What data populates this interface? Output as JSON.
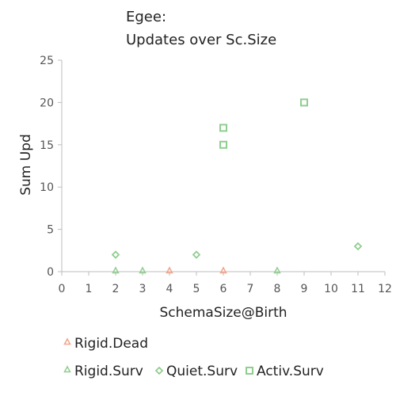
{
  "chart_data": {
    "type": "scatter",
    "title_lines": [
      "Egee:",
      "Updates over Sc.Size"
    ],
    "xlabel": "SchemaSize@Birth",
    "ylabel": "Sum Upd",
    "xlim": [
      0,
      12
    ],
    "ylim": [
      0,
      25
    ],
    "x_ticks": [
      0,
      1,
      2,
      3,
      4,
      5,
      6,
      7,
      8,
      9,
      10,
      11,
      12
    ],
    "y_ticks": [
      0,
      5,
      10,
      15,
      20,
      25
    ],
    "grid": false,
    "legend_position": "bottom",
    "series": [
      {
        "name": "Rigid.Dead",
        "marker": "triangle",
        "color": "#f4a48a",
        "points": [
          {
            "x": 4,
            "y": 0
          },
          {
            "x": 6,
            "y": 0
          }
        ]
      },
      {
        "name": "Rigid.Surv",
        "marker": "triangle",
        "color": "#8fce8f",
        "points": [
          {
            "x": 2,
            "y": 0
          },
          {
            "x": 3,
            "y": 0
          },
          {
            "x": 8,
            "y": 0
          }
        ]
      },
      {
        "name": "Quiet.Surv",
        "marker": "diamond",
        "color": "#8fce8f",
        "points": [
          {
            "x": 2,
            "y": 2
          },
          {
            "x": 5,
            "y": 2
          },
          {
            "x": 11,
            "y": 3
          }
        ]
      },
      {
        "name": "Activ.Surv",
        "marker": "square",
        "color": "#8fce8f",
        "points": [
          {
            "x": 6,
            "y": 15
          },
          {
            "x": 6,
            "y": 17
          },
          {
            "x": 9,
            "y": 20
          }
        ]
      }
    ]
  }
}
